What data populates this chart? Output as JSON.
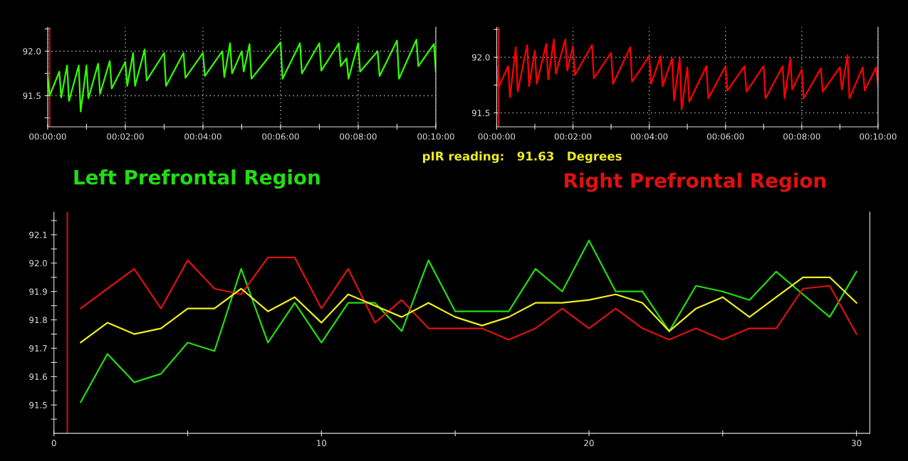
{
  "chart_data": [
    {
      "type": "line",
      "grid": true,
      "xlim": [
        0,
        10
      ],
      "ylim": [
        91.15,
        92.27
      ],
      "xticks": [
        {
          "value": 0,
          "label": "00:00:00"
        },
        {
          "value": 1,
          "label": null
        },
        {
          "value": 2,
          "label": "00:02:00"
        },
        {
          "value": 3,
          "label": null
        },
        {
          "value": 4,
          "label": "00:04:00"
        },
        {
          "value": 5,
          "label": null
        },
        {
          "value": 6,
          "label": "00:06:00"
        },
        {
          "value": 7,
          "label": null
        },
        {
          "value": 8,
          "label": "00:08:00"
        },
        {
          "value": 9,
          "label": null
        },
        {
          "value": 10,
          "label": "00:10:00"
        }
      ],
      "yticks": [
        {
          "value": 91.25,
          "label": null
        },
        {
          "value": 91.5,
          "label": "91.5"
        },
        {
          "value": 91.75,
          "label": null
        },
        {
          "value": 92,
          "label": "92.0"
        },
        {
          "value": 92.25,
          "label": null
        }
      ],
      "ref_lines": [
        {
          "axis": "x",
          "value": 0.05,
          "color": "#cc1111"
        }
      ],
      "series": [
        {
          "color": "#33ff00",
          "x": [
            0,
            0.05,
            0.3,
            0.35,
            0.5,
            0.55,
            0.8,
            0.85,
            1.0,
            1.05,
            1.3,
            1.35,
            1.6,
            1.65,
            2.0,
            2.05,
            2.2,
            2.25,
            2.5,
            2.55,
            3.0,
            3.05,
            3.5,
            3.55,
            4.0,
            4.05,
            4.5,
            4.55,
            4.7,
            4.75,
            5.0,
            5.05,
            5.2,
            5.25,
            6.0,
            6.05,
            6.5,
            6.55,
            7.0,
            7.05,
            7.5,
            7.55,
            7.7,
            7.75,
            8.0,
            8.05,
            8.5,
            8.55,
            9.0,
            9.05,
            9.5,
            9.55,
            9.95,
            10.0
          ],
          "values": [
            91.72,
            91.5,
            91.77,
            91.48,
            91.84,
            91.44,
            91.84,
            91.32,
            91.84,
            91.47,
            91.86,
            91.52,
            91.89,
            91.58,
            91.88,
            91.61,
            91.98,
            91.61,
            92.02,
            91.67,
            91.98,
            91.61,
            91.98,
            91.7,
            91.98,
            91.72,
            92.0,
            91.71,
            92.09,
            91.75,
            92.0,
            91.77,
            92.08,
            91.69,
            92.1,
            91.69,
            92.09,
            91.75,
            92.09,
            91.78,
            92.09,
            91.83,
            91.92,
            91.69,
            92.09,
            91.77,
            92.0,
            91.72,
            92.12,
            91.69,
            92.13,
            91.83,
            92.08,
            91.77
          ]
        }
      ]
    },
    {
      "type": "line",
      "grid": true,
      "xlim": [
        0,
        10
      ],
      "ylim": [
        91.375,
        92.27
      ],
      "xticks": [
        {
          "value": 0,
          "label": "00:00:00"
        },
        {
          "value": 1,
          "label": null
        },
        {
          "value": 2,
          "label": "00:02:00"
        },
        {
          "value": 3,
          "label": null
        },
        {
          "value": 4,
          "label": "00:04:00"
        },
        {
          "value": 5,
          "label": null
        },
        {
          "value": 6,
          "label": "00:06:00"
        },
        {
          "value": 7,
          "label": null
        },
        {
          "value": 8,
          "label": "00:08:00"
        },
        {
          "value": 9,
          "label": null
        },
        {
          "value": 10,
          "label": "00:10:00"
        }
      ],
      "yticks": [
        {
          "value": 91.5,
          "label": "91.5"
        },
        {
          "value": 91.75,
          "label": null
        },
        {
          "value": 92,
          "label": "92.0"
        },
        {
          "value": 92.25,
          "label": null
        }
      ],
      "ref_lines": [
        {
          "axis": "x",
          "value": 0.05,
          "color": "#cc1111"
        }
      ],
      "series": [
        {
          "color": "#ff0000",
          "x": [
            0,
            0.05,
            0.3,
            0.35,
            0.5,
            0.55,
            0.8,
            0.85,
            1.0,
            1.05,
            1.3,
            1.35,
            1.5,
            1.55,
            1.8,
            1.85,
            2.0,
            2.05,
            2.5,
            2.55,
            3.0,
            3.05,
            3.5,
            3.55,
            4.0,
            4.05,
            4.3,
            4.35,
            4.6,
            4.65,
            4.8,
            4.85,
            5.0,
            5.05,
            5.5,
            5.55,
            6.0,
            6.05,
            6.5,
            6.55,
            7.0,
            7.05,
            7.5,
            7.55,
            7.7,
            7.75,
            8.0,
            8.05,
            8.5,
            8.55,
            9.0,
            9.05,
            9.2,
            9.25,
            9.6,
            9.65,
            9.95,
            10.0
          ],
          "values": [
            91.92,
            91.73,
            91.92,
            91.64,
            92.09,
            91.69,
            92.11,
            91.74,
            92.06,
            91.76,
            92.12,
            91.8,
            92.16,
            91.85,
            92.16,
            91.88,
            92.1,
            91.84,
            92.11,
            91.81,
            92.04,
            91.76,
            92.09,
            91.78,
            92.01,
            91.76,
            92.01,
            91.74,
            91.99,
            91.61,
            91.99,
            91.53,
            91.91,
            91.6,
            91.92,
            91.63,
            91.92,
            91.7,
            91.92,
            91.69,
            91.92,
            91.63,
            91.92,
            91.63,
            91.99,
            91.71,
            91.89,
            91.63,
            91.9,
            91.69,
            91.91,
            91.71,
            92.02,
            91.63,
            91.91,
            91.7,
            91.91,
            91.74
          ]
        }
      ]
    },
    {
      "type": "line",
      "xlim": [
        0,
        30.5
      ],
      "ylim": [
        91.4,
        92.18
      ],
      "xticks": [
        0,
        {
          "value": 5,
          "label": null
        },
        10,
        {
          "value": 15,
          "label": null
        },
        20,
        {
          "value": 25,
          "label": null
        },
        30
      ],
      "yticks": [
        {
          "value": 91.45,
          "label": null
        },
        91.5,
        {
          "value": 91.55,
          "label": null
        },
        91.6,
        {
          "value": 91.65,
          "label": null
        },
        91.7,
        {
          "value": 91.75,
          "label": null
        },
        91.8,
        {
          "value": 91.85,
          "label": null
        },
        91.9,
        {
          "value": 91.95,
          "label": null
        },
        {
          "value": 92,
          "label": "92.0"
        },
        {
          "value": 92.05,
          "label": null
        },
        92.1,
        {
          "value": 92.15,
          "label": null
        }
      ],
      "ref_lines": [
        {
          "axis": "x",
          "value": 0.5,
          "color": "#cc1111"
        }
      ],
      "annotations": [
        "pIR reading:   91.63   Degrees"
      ],
      "x": [
        1,
        2,
        3,
        4,
        5,
        6,
        7,
        8,
        9,
        10,
        11,
        12,
        13,
        14,
        15,
        16,
        17,
        18,
        19,
        20,
        21,
        22,
        23,
        24,
        25,
        26,
        27,
        28,
        29,
        30
      ],
      "series": [
        {
          "name": "Left Prefrontal Region",
          "color": "#22dd11",
          "values": [
            91.51,
            91.68,
            91.58,
            91.61,
            91.72,
            91.69,
            91.98,
            91.72,
            91.86,
            91.72,
            91.86,
            91.86,
            91.76,
            92.01,
            91.83,
            91.83,
            91.83,
            91.98,
            91.9,
            92.08,
            91.9,
            91.9,
            91.76,
            91.92,
            91.9,
            91.87,
            91.97,
            91.89,
            91.81,
            91.97
          ]
        },
        {
          "name": "Right Prefrontal Region",
          "color": "#dd1111",
          "values": [
            91.84,
            91.91,
            91.98,
            91.84,
            92.01,
            91.91,
            91.89,
            92.02,
            92.02,
            91.84,
            91.98,
            91.79,
            91.87,
            91.77,
            91.77,
            91.77,
            91.73,
            91.77,
            91.84,
            91.77,
            91.84,
            91.77,
            91.73,
            91.77,
            91.73,
            91.77,
            91.77,
            91.91,
            91.92,
            91.75
          ]
        },
        {
          "color": "#eeee22",
          "values": [
            91.72,
            91.79,
            91.75,
            91.77,
            91.84,
            91.84,
            91.91,
            91.83,
            91.88,
            91.79,
            91.89,
            91.85,
            91.81,
            91.86,
            91.81,
            91.78,
            91.81,
            91.86,
            91.86,
            91.87,
            91.89,
            91.86,
            91.76,
            91.84,
            91.88,
            91.81,
            91.88,
            91.95,
            91.95,
            91.86
          ]
        }
      ]
    }
  ]
}
